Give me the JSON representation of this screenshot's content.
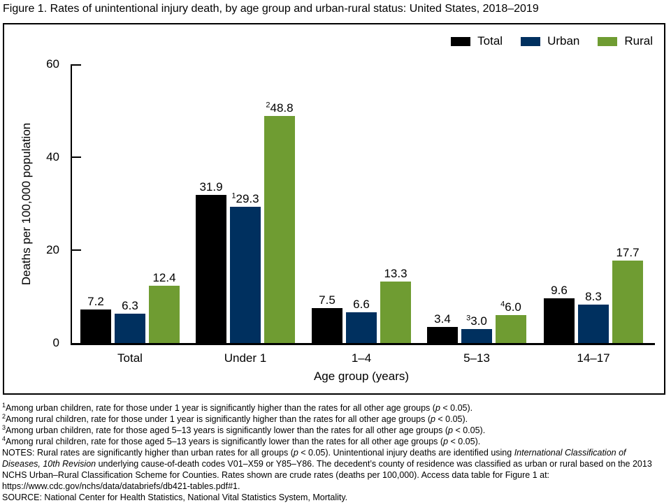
{
  "title": "Figure 1. Rates of unintentional injury death, by age group and urban-rural status: United States, 2018–2019",
  "chart_data": {
    "type": "bar",
    "title": "Rates of unintentional injury death, by age group and urban-rural status: United States, 2018–2019",
    "categories": [
      "Total",
      "Under 1",
      "1–4",
      "5–13",
      "14–17"
    ],
    "series": [
      {
        "name": "Total",
        "color": "#000000",
        "values": [
          7.2,
          31.9,
          7.5,
          3.4,
          9.6
        ],
        "sup": [
          "",
          "",
          "",
          "",
          ""
        ]
      },
      {
        "name": "Urban",
        "color": "#00305f",
        "values": [
          6.3,
          29.3,
          6.6,
          3.0,
          8.3
        ],
        "sup": [
          "",
          "1",
          "",
          "3",
          ""
        ]
      },
      {
        "name": "Rural",
        "color": "#6f9c32",
        "values": [
          12.4,
          48.8,
          13.3,
          6.0,
          17.7
        ],
        "sup": [
          "",
          "2",
          "",
          "4",
          ""
        ]
      }
    ],
    "xlabel": "Age group (years)",
    "ylabel": "Deaths per 100,000 population",
    "ylim": [
      0,
      60
    ],
    "yticks": [
      0,
      20,
      40,
      60
    ],
    "grid": false,
    "legend_position": "top-right"
  },
  "footnotes": [
    {
      "sup": "1",
      "segments": [
        {
          "t": "Among urban children, rate for those under 1 year is significantly higher than the rates for all other age groups (",
          "i": false
        },
        {
          "t": "p",
          "i": true
        },
        {
          "t": " < 0.05).",
          "i": false
        }
      ]
    },
    {
      "sup": "2",
      "segments": [
        {
          "t": "Among rural children, rate for those under 1 year is significantly higher than the rates for all other age groups (",
          "i": false
        },
        {
          "t": "p",
          "i": true
        },
        {
          "t": " < 0.05).",
          "i": false
        }
      ]
    },
    {
      "sup": "3",
      "segments": [
        {
          "t": "Among urban children, rate for those aged 5–13 years is significantly lower than the rates for all other age groups (",
          "i": false
        },
        {
          "t": "p",
          "i": true
        },
        {
          "t": " < 0.05).",
          "i": false
        }
      ]
    },
    {
      "sup": "4",
      "segments": [
        {
          "t": "Among rural children, rate for those aged 5–13 years is significantly lower than the rates for all other age groups (",
          "i": false
        },
        {
          "t": "p",
          "i": true
        },
        {
          "t": " < 0.05).",
          "i": false
        }
      ]
    }
  ],
  "notes": {
    "segments": [
      {
        "t": "NOTES: Rural rates are significantly higher than urban rates for all groups (",
        "i": false
      },
      {
        "t": "p",
        "i": true
      },
      {
        "t": " < 0.05). Unintentional injury deaths are identified using ",
        "i": false
      },
      {
        "t": "International Classification of Diseases, 10th Revision",
        "i": true
      },
      {
        "t": " underlying cause-of-death codes V01–X59 or Y85–Y86. The decedent’s county of residence was classified as urban or rural based on the 2013 NCHS Urban–Rural Classification Scheme for Counties. Rates shown are crude rates (deaths per 100,000). Access data table for Figure 1 at: https://www.cdc.gov/nchs/data/databriefs/db421-tables.pdf#1.",
        "i": false
      }
    ]
  },
  "source": "SOURCE: National Center for Health Statistics, National Vital Statistics System, Mortality."
}
